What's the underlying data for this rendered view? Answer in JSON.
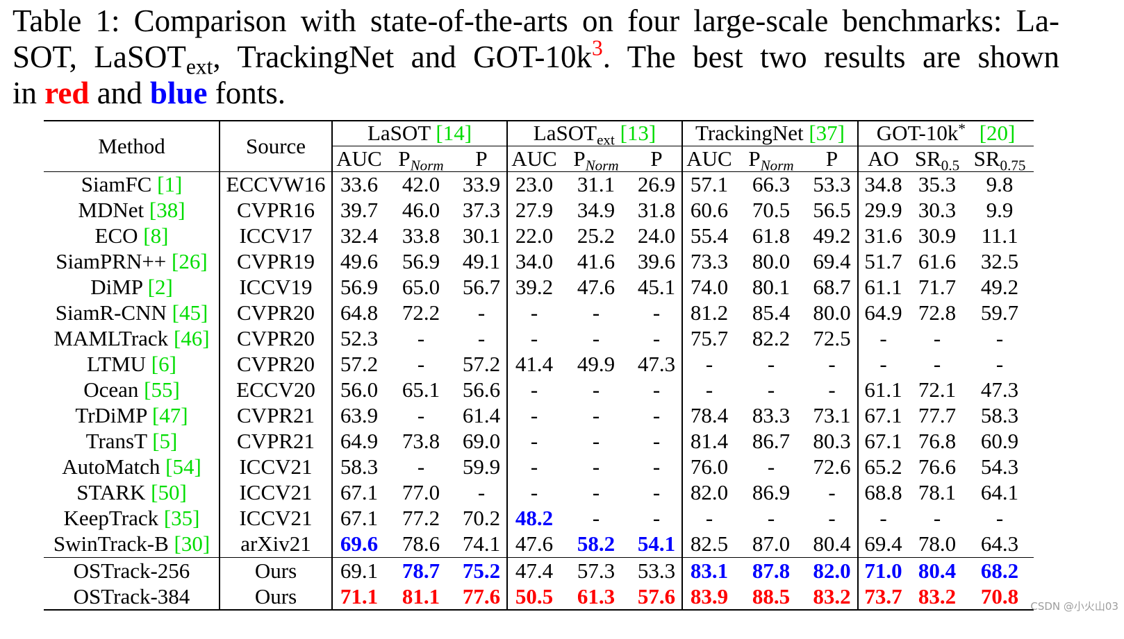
{
  "caption": {
    "line1": "Table 1: Comparison with state-of-the-arts on four large-scale benchmarks: La-",
    "line2_a": "SOT, LaSOT",
    "line2_sub": "ext",
    "line2_b": ", TrackingNet and GOT-10k",
    "line2_sup": "3",
    "line2_c": ". The best two results are shown",
    "line3_a": "in ",
    "line3_red": "red",
    "line3_b": " and ",
    "line3_blue": "blue",
    "line3_c": " fonts."
  },
  "colors": {
    "best": "#ff0000",
    "second": "#0000ff",
    "citation": "#00dd00",
    "text": "#000000"
  },
  "table": {
    "method_header": "Method",
    "source_header": "Source",
    "groups": [
      {
        "name": "LaSOT",
        "cite": "[14]",
        "cols": [
          {
            "main": "AUC"
          },
          {
            "main": "P",
            "sub": "Norm"
          },
          {
            "main": "P"
          }
        ]
      },
      {
        "name": "LaSOT",
        "name_sub": "ext",
        "cite": "[13]",
        "cols": [
          {
            "main": "AUC"
          },
          {
            "main": "P",
            "sub": "Norm"
          },
          {
            "main": "P"
          }
        ]
      },
      {
        "name": "TrackingNet",
        "cite": "[37]",
        "cols": [
          {
            "main": "AUC"
          },
          {
            "main": "P",
            "sub": "Norm"
          },
          {
            "main": "P"
          }
        ]
      },
      {
        "name": "GOT-10k",
        "name_sup": "*",
        "cite": "[20]",
        "cols": [
          {
            "main": "AO"
          },
          {
            "main": "SR",
            "sub": "0.5"
          },
          {
            "main": "SR",
            "sub": "0.75"
          }
        ]
      }
    ],
    "rows": [
      {
        "method": "SiamFC",
        "cite": "[1]",
        "source": "ECCVW16",
        "values": [
          "33.6",
          "42.0",
          "33.9",
          "23.0",
          "31.1",
          "26.9",
          "57.1",
          "66.3",
          "53.3",
          "34.8",
          "35.3",
          "9.8"
        ]
      },
      {
        "method": "MDNet",
        "cite": "[38]",
        "source": "CVPR16",
        "values": [
          "39.7",
          "46.0",
          "37.3",
          "27.9",
          "34.9",
          "31.8",
          "60.6",
          "70.5",
          "56.5",
          "29.9",
          "30.3",
          "9.9"
        ]
      },
      {
        "method": "ECO",
        "cite": "[8]",
        "source": "ICCV17",
        "values": [
          "32.4",
          "33.8",
          "30.1",
          "22.0",
          "25.2",
          "24.0",
          "55.4",
          "61.8",
          "49.2",
          "31.6",
          "30.9",
          "11.1"
        ]
      },
      {
        "method": "SiamPRN++",
        "cite": "[26]",
        "source": "CVPR19",
        "values": [
          "49.6",
          "56.9",
          "49.1",
          "34.0",
          "41.6",
          "39.6",
          "73.3",
          "80.0",
          "69.4",
          "51.7",
          "61.6",
          "32.5"
        ]
      },
      {
        "method": "DiMP",
        "cite": "[2]",
        "source": "ICCV19",
        "values": [
          "56.9",
          "65.0",
          "56.7",
          "39.2",
          "47.6",
          "45.1",
          "74.0",
          "80.1",
          "68.7",
          "61.1",
          "71.7",
          "49.2"
        ]
      },
      {
        "method": "SiamR-CNN",
        "cite": "[45]",
        "source": "CVPR20",
        "values": [
          "64.8",
          "72.2",
          "-",
          "-",
          "-",
          "-",
          "81.2",
          "85.4",
          "80.0",
          "64.9",
          "72.8",
          "59.7"
        ]
      },
      {
        "method": "MAMLTrack",
        "cite": "[46]",
        "source": "CVPR20",
        "values": [
          "52.3",
          "-",
          "-",
          "-",
          "-",
          "-",
          "75.7",
          "82.2",
          "72.5",
          "-",
          "-",
          "-"
        ]
      },
      {
        "method": "LTMU",
        "cite": "[6]",
        "source": "CVPR20",
        "values": [
          "57.2",
          "-",
          "57.2",
          "41.4",
          "49.9",
          "47.3",
          "-",
          "-",
          "-",
          "-",
          "-",
          "-"
        ]
      },
      {
        "method": "Ocean",
        "cite": "[55]",
        "source": "ECCV20",
        "values": [
          "56.0",
          "65.1",
          "56.6",
          "-",
          "-",
          "-",
          "-",
          "-",
          "-",
          "61.1",
          "72.1",
          "47.3"
        ]
      },
      {
        "method": "TrDiMP",
        "cite": "[47]",
        "source": "CVPR21",
        "values": [
          "63.9",
          "-",
          "61.4",
          "-",
          "-",
          "-",
          "78.4",
          "83.3",
          "73.1",
          "67.1",
          "77.7",
          "58.3"
        ]
      },
      {
        "method": "TransT",
        "cite": "[5]",
        "source": "CVPR21",
        "values": [
          "64.9",
          "73.8",
          "69.0",
          "-",
          "-",
          "-",
          "81.4",
          "86.7",
          "80.3",
          "67.1",
          "76.8",
          "60.9"
        ]
      },
      {
        "method": "AutoMatch",
        "cite": "[54]",
        "source": "ICCV21",
        "values": [
          "58.3",
          "-",
          "59.9",
          "-",
          "-",
          "-",
          "76.0",
          "-",
          "72.6",
          "65.2",
          "76.6",
          "54.3"
        ]
      },
      {
        "method": "STARK",
        "cite": "[50]",
        "source": "ICCV21",
        "values": [
          "67.1",
          "77.0",
          "-",
          "-",
          "-",
          "-",
          "82.0",
          "86.9",
          "-",
          "68.8",
          "78.1",
          "64.1"
        ]
      },
      {
        "method": "KeepTrack",
        "cite": "[35]",
        "source": "ICCV21",
        "values": [
          "67.1",
          "77.2",
          "70.2",
          "48.2",
          "-",
          "-",
          "-",
          "-",
          "-",
          "-",
          "-",
          "-"
        ],
        "highlight": [
          "",
          "",
          "",
          "blue",
          "",
          "",
          "",
          "",
          "",
          "",
          "",
          ""
        ]
      },
      {
        "method": "SwinTrack-B",
        "cite": "[30]",
        "source": "arXiv21",
        "values": [
          "69.6",
          "78.6",
          "74.1",
          "47.6",
          "58.2",
          "54.1",
          "82.5",
          "87.0",
          "80.4",
          "69.4",
          "78.0",
          "64.3"
        ],
        "highlight": [
          "blue",
          "",
          "",
          "",
          "blue",
          "blue",
          "",
          "",
          "",
          "",
          "",
          ""
        ]
      }
    ],
    "ours": [
      {
        "method": "OSTrack-256",
        "source": "Ours",
        "values": [
          "69.1",
          "78.7",
          "75.2",
          "47.4",
          "57.3",
          "53.3",
          "83.1",
          "87.8",
          "82.0",
          "71.0",
          "80.4",
          "68.2"
        ],
        "highlight": [
          "",
          "blue",
          "blue",
          "",
          "",
          "",
          "blue",
          "blue",
          "blue",
          "blue",
          "blue",
          "blue"
        ]
      },
      {
        "method": "OSTrack-384",
        "source": "Ours",
        "values": [
          "71.1",
          "81.1",
          "77.6",
          "50.5",
          "61.3",
          "57.6",
          "83.9",
          "88.5",
          "83.2",
          "73.7",
          "83.2",
          "70.8"
        ],
        "highlight": [
          "red",
          "red",
          "red",
          "red",
          "red",
          "red",
          "red",
          "red",
          "red",
          "red",
          "red",
          "red"
        ]
      }
    ]
  },
  "watermark": "CSDN @小火山03"
}
